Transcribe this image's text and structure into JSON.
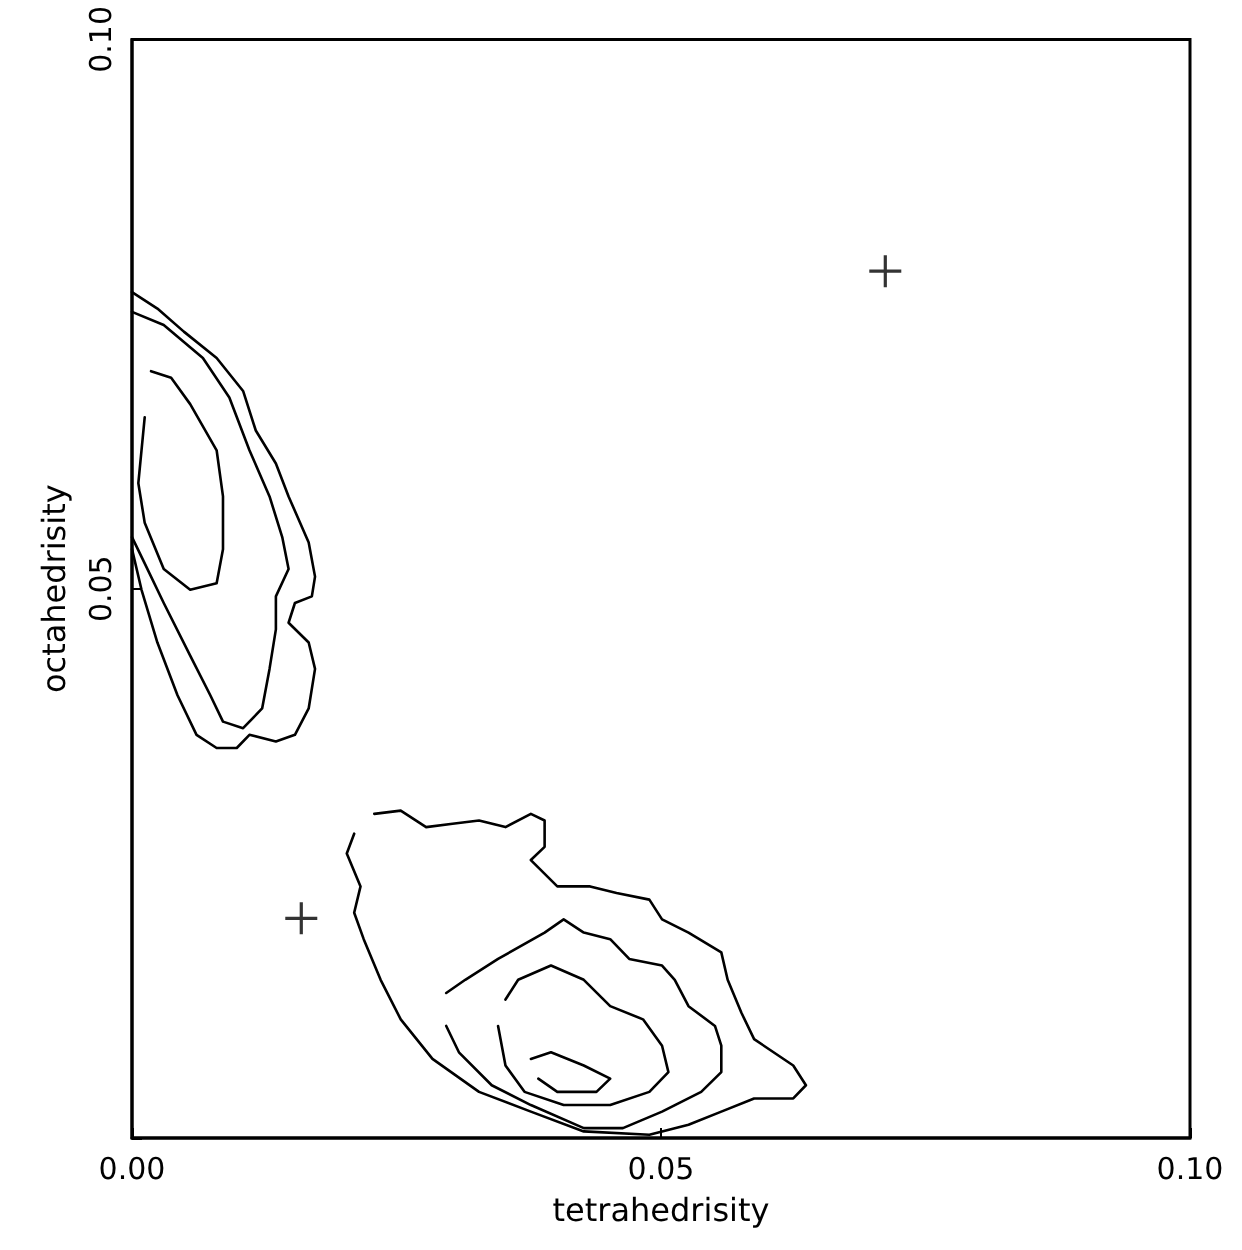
{
  "chart_data": {
    "type": "line",
    "xlabel": "tetrahedrisity",
    "ylabel": "octahedrisity",
    "xlim": [
      0,
      0.1
    ],
    "ylim": [
      0,
      0.1
    ],
    "xticks": [
      {
        "value": 0,
        "label": "0.00"
      },
      {
        "value": 0.05,
        "label": "0.05"
      },
      {
        "value": 0.1,
        "label": "0.10"
      }
    ],
    "yticks": [
      {
        "value": 0,
        "label": null
      },
      {
        "value": 0.05,
        "label": "0.05"
      },
      {
        "value": 0.1,
        "label": "0.10"
      }
    ],
    "grid": false,
    "marker": "none",
    "line_style": "solid",
    "series": [
      {
        "color": "#000000",
        "x": [
          0.0,
          0.0024,
          0.0049,
          0.008,
          0.0105,
          0.0117,
          0.0136,
          0.0148,
          0.0167,
          0.0173,
          0.017,
          0.0154,
          0.0148,
          0.0167,
          0.0173,
          0.0167,
          0.0154,
          0.0136,
          0.0111,
          0.0099,
          0.008,
          0.0061,
          0.0043,
          0.0024,
          0.0009,
          0.0
        ],
        "values": [
          0.077,
          0.0755,
          0.0734,
          0.071,
          0.068,
          0.0644,
          0.0614,
          0.0584,
          0.0542,
          0.0511,
          0.0493,
          0.0487,
          0.0469,
          0.0451,
          0.0427,
          0.0391,
          0.0367,
          0.0361,
          0.0367,
          0.0355,
          0.0355,
          0.0367,
          0.0403,
          0.0451,
          0.0499,
          0.0536
        ]
      },
      {
        "color": "#000000",
        "x": [
          0.0,
          0.003,
          0.0067,
          0.0092,
          0.0111,
          0.013,
          0.0142,
          0.0148,
          0.0136,
          0.0136,
          0.013,
          0.0123,
          0.0105,
          0.0086,
          0.0074,
          0.0055,
          0.003,
          0.0012,
          0.0
        ],
        "values": [
          0.0752,
          0.074,
          0.071,
          0.0674,
          0.0626,
          0.0584,
          0.0547,
          0.0518,
          0.0493,
          0.0463,
          0.0427,
          0.0391,
          0.0373,
          0.0379,
          0.0403,
          0.0439,
          0.0487,
          0.0523,
          0.0547
        ]
      },
      {
        "color": "#000000",
        "x": [
          0.0018,
          0.0037,
          0.0055,
          0.008,
          0.0086,
          0.0086,
          0.008,
          0.0055,
          0.003,
          0.0012,
          0.0006,
          0.0012
        ],
        "values": [
          0.0698,
          0.0692,
          0.0668,
          0.0626,
          0.0584,
          0.0536,
          0.0505,
          0.0499,
          0.0518,
          0.056,
          0.0596,
          0.0656
        ]
      },
      {
        "color": "#000000",
        "x": [
          0.0229,
          0.0254,
          0.0278,
          0.0303,
          0.0328,
          0.0353,
          0.0377,
          0.039,
          0.039,
          0.0377,
          0.0402,
          0.0433,
          0.0458,
          0.0489,
          0.0501,
          0.0526,
          0.0557,
          0.0563,
          0.0576,
          0.0588,
          0.0625,
          0.0637,
          0.0625,
          0.0588,
          0.0557,
          0.0526,
          0.0489,
          0.0427,
          0.0377,
          0.0328,
          0.0284,
          0.0254,
          0.0235,
          0.0219,
          0.021,
          0.0216,
          0.0203,
          0.021
        ],
        "values": [
          0.0295,
          0.0298,
          0.0283,
          0.0286,
          0.0289,
          0.0283,
          0.0295,
          0.0289,
          0.0265,
          0.0253,
          0.0229,
          0.0229,
          0.0223,
          0.0217,
          0.0199,
          0.0187,
          0.0169,
          0.0144,
          0.0114,
          0.009,
          0.0066,
          0.0048,
          0.0036,
          0.0036,
          0.0024,
          0.0012,
          0.0003,
          0.0006,
          0.0024,
          0.0042,
          0.0072,
          0.0108,
          0.0144,
          0.0181,
          0.0205,
          0.0229,
          0.0259,
          0.0277
        ]
      },
      {
        "color": "#000000",
        "x": [
          0.0297,
          0.0315,
          0.0346,
          0.039,
          0.0408,
          0.0427,
          0.0452,
          0.047,
          0.0501,
          0.0513,
          0.0526,
          0.0551,
          0.0557,
          0.0557,
          0.0538,
          0.0501,
          0.0464,
          0.0427,
          0.0377,
          0.034,
          0.0309,
          0.0297
        ],
        "values": [
          0.0132,
          0.0144,
          0.0163,
          0.0187,
          0.0199,
          0.0187,
          0.0181,
          0.0163,
          0.0157,
          0.0144,
          0.012,
          0.0102,
          0.0084,
          0.006,
          0.0042,
          0.0024,
          0.0009,
          0.0009,
          0.003,
          0.0048,
          0.0078,
          0.0102
        ]
      },
      {
        "color": "#000000",
        "x": [
          0.0353,
          0.0365,
          0.0396,
          0.0427,
          0.0452,
          0.0483,
          0.0501,
          0.0507,
          0.0489,
          0.0452,
          0.0408,
          0.0371,
          0.0353,
          0.0346
        ],
        "values": [
          0.0126,
          0.0144,
          0.0157,
          0.0144,
          0.012,
          0.0108,
          0.0084,
          0.006,
          0.0042,
          0.003,
          0.003,
          0.0042,
          0.0066,
          0.0102
        ]
      },
      {
        "color": "#000000",
        "x": [
          0.0377,
          0.0396,
          0.0427,
          0.0452,
          0.0439,
          0.0402,
          0.0384
        ],
        "values": [
          0.0072,
          0.0078,
          0.0066,
          0.0054,
          0.0042,
          0.0042,
          0.0054
        ]
      },
      {
        "type": "scatter",
        "marker": "cross",
        "color": "#000000",
        "x": [
          0.016,
          0.0712
        ],
        "values": [
          0.02,
          0.0789
        ]
      }
    ]
  }
}
